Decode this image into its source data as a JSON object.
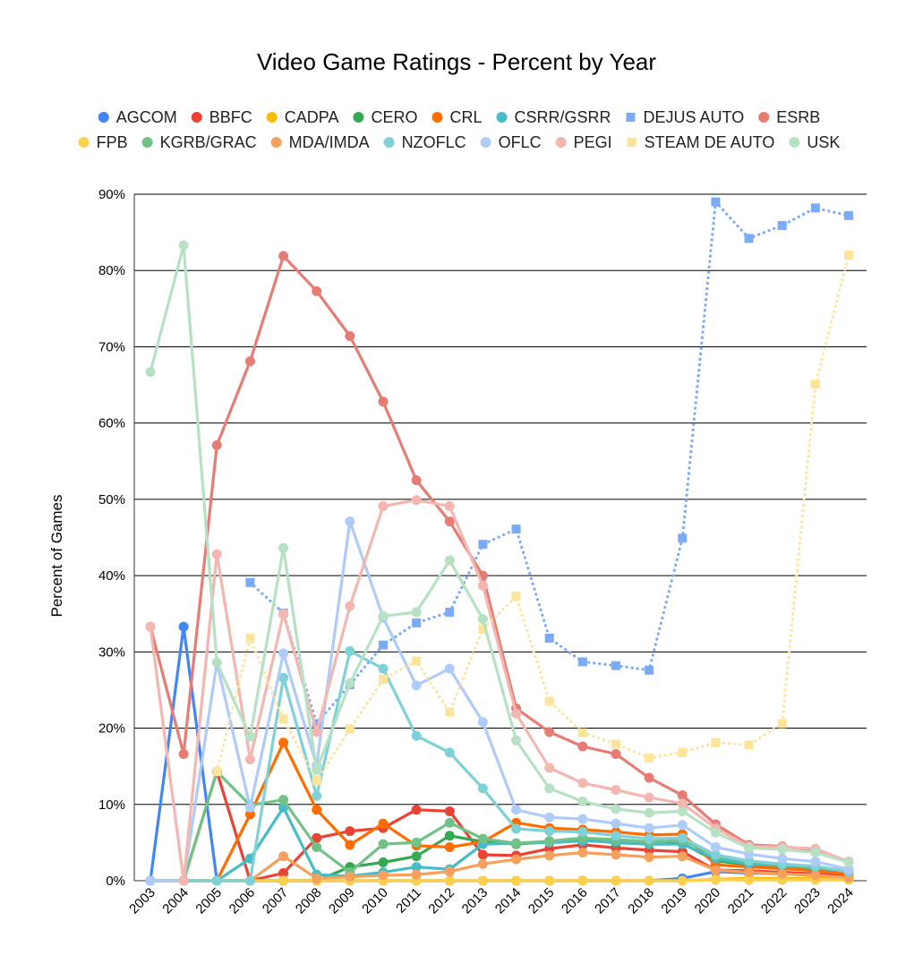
{
  "chart_data": {
    "type": "line",
    "title": "Video Game Ratings - Percent by Year",
    "xlabel": "",
    "ylabel": "Percent of Games",
    "ylim": [
      0,
      90
    ],
    "y_ticks": [
      "0%",
      "10%",
      "20%",
      "30%",
      "40%",
      "50%",
      "60%",
      "70%",
      "80%",
      "90%"
    ],
    "grid": true,
    "legend_position": "top",
    "categories": [
      "2003",
      "2004",
      "2005",
      "2006",
      "2007",
      "2008",
      "2009",
      "2010",
      "2011",
      "2012",
      "2013",
      "2014",
      "2015",
      "2016",
      "2017",
      "2018",
      "2019",
      "2020",
      "2021",
      "2022",
      "2023",
      "2024"
    ],
    "series": [
      {
        "name": "AGCOM",
        "color": "#4285f4",
        "marker": "circle",
        "dash": false,
        "values": [
          0,
          33.3,
          0,
          0,
          0,
          0,
          0,
          0,
          0,
          0,
          0,
          0,
          0,
          0,
          0,
          0,
          0.3,
          1.2,
          1.0,
          0.9,
          0.7,
          0.5
        ]
      },
      {
        "name": "BBFC",
        "color": "#ea4335",
        "marker": "circle",
        "dash": false,
        "values": [
          0,
          0,
          14.3,
          0,
          1.0,
          5.6,
          6.5,
          6.9,
          9.3,
          9.1,
          3.4,
          3.3,
          4.2,
          4.7,
          4.3,
          4.0,
          3.8,
          1.4,
          1.3,
          1.1,
          0.9,
          0.6
        ]
      },
      {
        "name": "CADPA",
        "color": "#fbbc04",
        "marker": "circle",
        "dash": false,
        "values": [
          0,
          0,
          0,
          0,
          0,
          0,
          0,
          0,
          0,
          0,
          0,
          0,
          0,
          0,
          0,
          0,
          0,
          0.2,
          0.3,
          0.3,
          0.3,
          0.2
        ]
      },
      {
        "name": "CERO",
        "color": "#34a853",
        "marker": "circle",
        "dash": false,
        "values": [
          0,
          0,
          0,
          0,
          0,
          0,
          1.8,
          2.4,
          3.2,
          5.9,
          5.1,
          4.8,
          5.1,
          5.3,
          5.0,
          4.8,
          4.9,
          2.6,
          2.1,
          1.8,
          1.5,
          1.0
        ]
      },
      {
        "name": "CRL",
        "color": "#ff6d01",
        "marker": "circle",
        "dash": false,
        "values": [
          0,
          0,
          0,
          8.7,
          18.1,
          9.3,
          4.7,
          7.5,
          4.6,
          4.4,
          5.1,
          7.6,
          6.9,
          6.7,
          6.4,
          6.0,
          6.1,
          2.1,
          1.8,
          1.6,
          1.3,
          0.9
        ]
      },
      {
        "name": "CSRR/GSRR",
        "color": "#46bdc6",
        "marker": "circle",
        "dash": false,
        "values": [
          0,
          0,
          0,
          2.9,
          9.6,
          0.8,
          0.6,
          1.1,
          1.8,
          1.5,
          4.8,
          4.9,
          5.0,
          5.2,
          5.1,
          4.8,
          4.8,
          2.9,
          2.2,
          2.0,
          1.7,
          1.2
        ]
      },
      {
        "name": "DEJUS AUTO",
        "color": "#7baaf7",
        "marker": "square",
        "dash": true,
        "values": [
          null,
          null,
          null,
          39.1,
          35.1,
          20.6,
          25.7,
          30.9,
          33.8,
          35.2,
          44.1,
          46.1,
          31.8,
          28.7,
          28.2,
          27.6,
          44.9,
          89.0,
          84.2,
          85.9,
          88.2,
          87.2
        ]
      },
      {
        "name": "ESRB",
        "color": "#e67c73",
        "marker": "circle",
        "dash": false,
        "values": [
          33.3,
          16.6,
          57.1,
          68.1,
          81.9,
          77.3,
          71.4,
          62.8,
          52.5,
          47.1,
          40.0,
          22.6,
          19.5,
          17.6,
          16.6,
          13.5,
          11.2,
          7.4,
          4.7,
          4.5,
          4.0,
          2.5
        ]
      },
      {
        "name": "FPB",
        "color": "#fcd04f",
        "marker": "circle",
        "dash": false,
        "values": [
          0,
          0,
          0,
          0,
          0,
          0,
          0,
          0,
          0,
          0,
          0,
          0,
          0,
          0,
          0,
          0,
          0,
          0.1,
          0.1,
          0.1,
          0.1,
          0.1
        ]
      },
      {
        "name": "KGRB/GRAC",
        "color": "#71c287",
        "marker": "circle",
        "dash": false,
        "values": [
          0,
          0,
          14.3,
          9.9,
          10.6,
          4.4,
          1.1,
          4.8,
          5.0,
          7.6,
          5.5,
          4.9,
          5.2,
          5.6,
          5.4,
          5.1,
          5.3,
          3.3,
          2.5,
          2.1,
          1.8,
          1.3
        ]
      },
      {
        "name": "MDA/IMDA",
        "color": "#f6a05c",
        "marker": "circle",
        "dash": false,
        "values": [
          0,
          0,
          0,
          0,
          3.2,
          0.3,
          0.5,
          0.7,
          0.8,
          1.2,
          2.2,
          2.8,
          3.3,
          3.7,
          3.4,
          3.1,
          3.2,
          1.4,
          1.1,
          0.9,
          0.7,
          0.4
        ]
      },
      {
        "name": "NZOFLC",
        "color": "#7ed1d7",
        "marker": "circle",
        "dash": false,
        "values": [
          0,
          0,
          0,
          0,
          26.6,
          11.1,
          30.1,
          27.8,
          19.0,
          16.8,
          12.1,
          6.8,
          6.5,
          6.4,
          5.9,
          5.5,
          5.6,
          3.4,
          2.6,
          2.2,
          1.9,
          1.2
        ]
      },
      {
        "name": "OFLC",
        "color": "#aecbfa",
        "marker": "circle",
        "dash": false,
        "values": [
          0,
          0,
          28.6,
          9.6,
          29.8,
          15.1,
          47.1,
          34.5,
          25.6,
          27.8,
          20.8,
          9.3,
          8.3,
          8.1,
          7.5,
          6.9,
          7.3,
          4.4,
          3.5,
          2.9,
          2.5,
          1.5
        ]
      },
      {
        "name": "PEGI",
        "color": "#f4b6b0",
        "marker": "circle",
        "dash": false,
        "values": [
          33.3,
          0,
          42.8,
          15.9,
          35.0,
          19.5,
          36.0,
          49.1,
          49.9,
          49.1,
          38.7,
          21.9,
          14.8,
          12.8,
          11.9,
          10.9,
          10.1,
          6.9,
          4.5,
          4.4,
          4.2,
          2.5
        ]
      },
      {
        "name": "STEAM DE AUTO",
        "color": "#fde49b",
        "marker": "square",
        "dash": true,
        "values": [
          null,
          null,
          14.3,
          31.8,
          21.2,
          13.1,
          19.9,
          26.4,
          28.8,
          22.1,
          33.0,
          37.3,
          23.5,
          19.4,
          17.9,
          16.1,
          16.8,
          18.1,
          17.8,
          20.6,
          65.1,
          82.0
        ]
      },
      {
        "name": "USK",
        "color": "#b7e1c3",
        "marker": "circle",
        "dash": false,
        "values": [
          66.7,
          83.3,
          28.6,
          18.9,
          43.6,
          14.5,
          25.9,
          34.7,
          35.2,
          42.0,
          34.3,
          18.4,
          12.1,
          10.4,
          9.4,
          8.9,
          9.1,
          6.3,
          4.3,
          4.1,
          3.7,
          2.4
        ]
      }
    ]
  }
}
